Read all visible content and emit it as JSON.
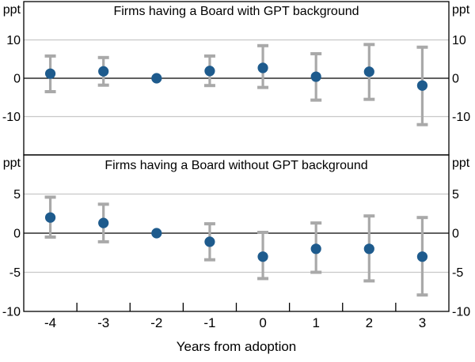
{
  "figure": {
    "xlabel": "Years from adoption",
    "unit_label": "ppt"
  },
  "style": {
    "point_color": "#1e5b8d",
    "errorbar_color": "#a9a9a9",
    "gridline_color": "#c8c8c8",
    "axis_color": "#000000",
    "text_color": "#000000"
  },
  "chart_data": [
    {
      "type": "scatter",
      "title": "Firms having a Board with GPT background",
      "xlabel": "Years from adoption",
      "ylabel": "ppt",
      "x": [
        -4,
        -3,
        -2,
        -1,
        0,
        1,
        2,
        3
      ],
      "values": [
        1.2,
        1.8,
        0,
        1.9,
        2.7,
        0.4,
        1.7,
        -1.9
      ],
      "ci_low": [
        -3.5,
        -1.8,
        null,
        -1.9,
        -2.4,
        -5.7,
        -5.5,
        -12.1
      ],
      "ci_high": [
        5.8,
        5.4,
        null,
        5.8,
        8.5,
        6.4,
        8.8,
        8.1
      ],
      "ylim": [
        -20,
        20
      ],
      "yticks": [
        10,
        0,
        -10
      ],
      "grid": true,
      "legend": false
    },
    {
      "type": "scatter",
      "title": "Firms having a Board without GPT background",
      "xlabel": "Years from adoption",
      "ylabel": "ppt",
      "x": [
        -4,
        -3,
        -2,
        -1,
        0,
        1,
        2,
        3
      ],
      "values": [
        2.0,
        1.3,
        0,
        -1.1,
        -3.0,
        -2.0,
        -2.0,
        -3.0
      ],
      "ci_low": [
        -0.5,
        -1.1,
        null,
        -3.4,
        -5.8,
        -5.0,
        -6.1,
        -7.9
      ],
      "ci_high": [
        4.6,
        3.7,
        null,
        1.2,
        0.1,
        1.3,
        2.2,
        2.0
      ],
      "ylim": [
        -10,
        10
      ],
      "yticks": [
        5,
        0,
        -5,
        -10
      ],
      "grid": true,
      "legend": false
    }
  ]
}
